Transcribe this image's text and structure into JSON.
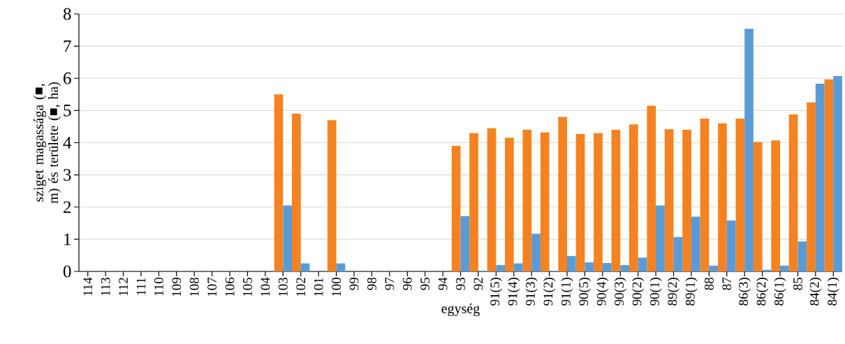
{
  "chart_data": {
    "type": "bar",
    "xlabel": "egység",
    "ylabel": "sziget magassága (■, m) és területe (■, ha)",
    "categories": [
      "114",
      "113",
      "112",
      "111",
      "110",
      "109",
      "108",
      "107",
      "106",
      "105",
      "104",
      "103",
      "102",
      "101",
      "100",
      "99",
      "98",
      "97",
      "96",
      "95",
      "94",
      "93",
      "92",
      "91(5)",
      "91(4)",
      "91(3)",
      "91(2)",
      "91(1)",
      "90(5)",
      "90(4)",
      "90(3)",
      "90(2)",
      "90(1)",
      "89(2)",
      "89(1)",
      "88",
      "87",
      "86(3)",
      "86(2)",
      "86(1)",
      "85",
      "84(2)",
      "84(1)"
    ],
    "series": [
      {
        "color": "#f58220",
        "values": [
          0,
          0,
          0,
          0,
          0,
          0,
          0,
          0,
          0,
          0,
          0,
          5.5,
          4.9,
          0,
          4.7,
          0,
          0,
          0,
          0,
          0,
          0,
          3.9,
          4.3,
          4.45,
          4.15,
          4.4,
          4.32,
          4.8,
          4.27,
          4.3,
          4.4,
          4.57,
          5.15,
          4.42,
          4.4,
          4.75,
          4.6,
          4.75,
          4.02,
          4.07,
          4.88,
          5.25,
          5.97
        ]
      },
      {
        "color": "#5b9bd5",
        "values": [
          0,
          0,
          0,
          0,
          0,
          0,
          0,
          0,
          0,
          0,
          0,
          2.05,
          0.25,
          0,
          0.25,
          0,
          0,
          0,
          0,
          0,
          0,
          1.72,
          0.02,
          0.2,
          0.25,
          1.17,
          0.02,
          0.48,
          0.28,
          0.26,
          0.2,
          0.43,
          2.05,
          1.07,
          1.7,
          0.18,
          1.58,
          7.54,
          0.05,
          0.18,
          0.93,
          5.83,
          6.07
        ]
      }
    ],
    "ylim": [
      0,
      8
    ],
    "yticks": [
      0,
      1,
      2,
      3,
      4,
      5,
      6,
      7,
      8
    ],
    "grid": "y"
  }
}
